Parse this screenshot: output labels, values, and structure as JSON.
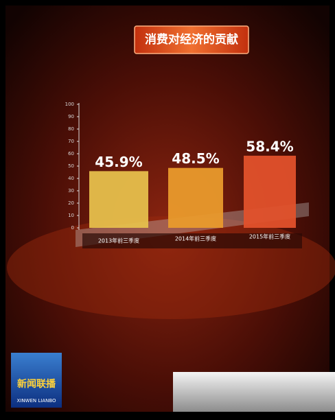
{
  "chart_data": {
    "type": "bar",
    "title": "消费对经济的贡献",
    "categories": [
      "2013年前三季度",
      "2014年前三季度",
      "2015年前三季度"
    ],
    "values": [
      45.9,
      48.5,
      58.4
    ],
    "value_labels": [
      "45.9%",
      "48.5%",
      "58.4%"
    ],
    "colors": [
      "#e6bf4c",
      "#e99a2c",
      "#e2512b"
    ],
    "ylim": [
      0,
      100
    ],
    "yticks": [
      0,
      10,
      20,
      30,
      40,
      50,
      60,
      70,
      80,
      90,
      100
    ]
  },
  "logo": {
    "name": "新闻联播",
    "pinyin": "XINWEN LIANBO"
  }
}
